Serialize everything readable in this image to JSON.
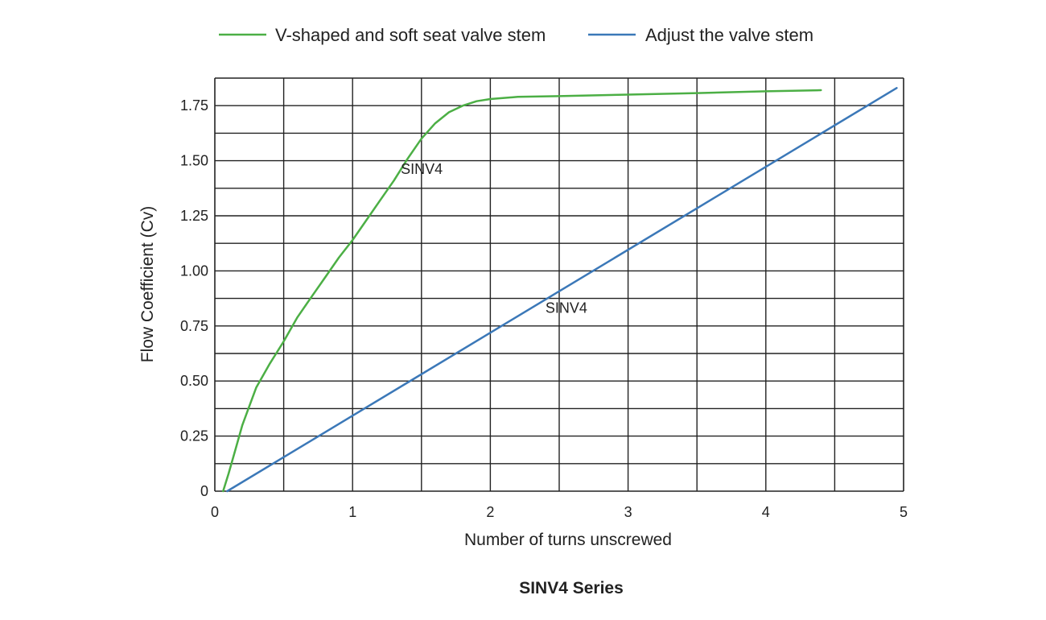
{
  "caption": "SINV4 Series",
  "chart_data": {
    "type": "line",
    "title": "",
    "xlabel": "Number of turns unscrewed",
    "ylabel": "Flow Coefficient (Cv)",
    "xlim": [
      0,
      5
    ],
    "ylim": [
      0,
      1.875
    ],
    "x_ticks": [
      "0",
      "1",
      "2",
      "3",
      "4",
      "5"
    ],
    "x_tick_values": [
      0,
      1,
      2,
      3,
      4,
      5
    ],
    "y_ticks": [
      "0",
      "0.25",
      "0.50",
      "0.75",
      "1.00",
      "1.25",
      "1.50",
      "1.75"
    ],
    "y_tick_values": [
      0,
      0.25,
      0.5,
      0.75,
      1.0,
      1.25,
      1.5,
      1.75
    ],
    "grid": true,
    "x_grid_step": 0.5,
    "y_grid_step": 0.125,
    "legend_position": "top",
    "series": [
      {
        "name": "V-shaped and soft seat valve stem",
        "color": "#4caf45",
        "x": [
          0.06,
          0.1,
          0.15,
          0.2,
          0.3,
          0.4,
          0.5,
          0.6,
          0.7,
          0.8,
          0.9,
          1.0,
          1.1,
          1.2,
          1.3,
          1.4,
          1.5,
          1.6,
          1.7,
          1.8,
          1.9,
          2.0,
          2.1,
          2.2,
          2.5,
          3.0,
          3.5,
          4.0,
          4.4
        ],
        "y": [
          0.0,
          0.08,
          0.19,
          0.3,
          0.47,
          0.58,
          0.68,
          0.79,
          0.88,
          0.97,
          1.06,
          1.14,
          1.23,
          1.32,
          1.41,
          1.51,
          1.6,
          1.67,
          1.72,
          1.75,
          1.77,
          1.78,
          1.785,
          1.79,
          1.793,
          1.8,
          1.807,
          1.815,
          1.82
        ]
      },
      {
        "name": "Adjust the valve stem",
        "color": "#3b78b8",
        "x": [
          0.09,
          4.95
        ],
        "y": [
          0.0,
          1.83
        ]
      }
    ],
    "annotations": [
      {
        "text": "SINV4",
        "x": 1.35,
        "y": 1.44
      },
      {
        "text": "SINV4",
        "x": 2.4,
        "y": 0.81
      }
    ]
  }
}
